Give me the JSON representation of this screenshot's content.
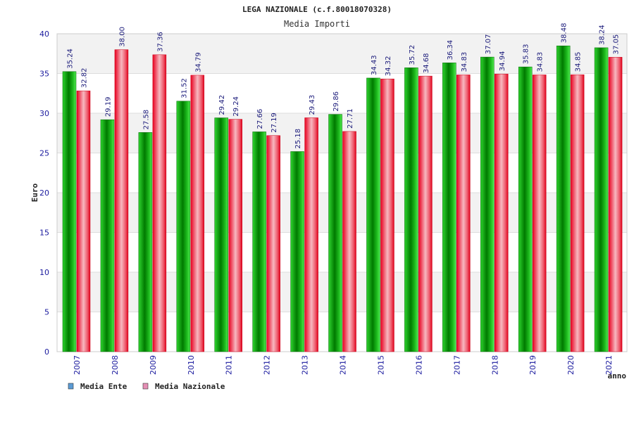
{
  "chart_data": {
    "type": "bar",
    "title": "LEGA NAZIONALE (c.f.80018070328)",
    "subtitle": "Media Importi",
    "xlabel": "anno",
    "ylabel": "Euro",
    "ylim": [
      0,
      40
    ],
    "yticks": [
      "0",
      "5",
      "10",
      "15",
      "20",
      "25",
      "30",
      "35",
      "40"
    ],
    "categories": [
      "2007",
      "2008",
      "2009",
      "2010",
      "2011",
      "2012",
      "2013",
      "2014",
      "2015",
      "2016",
      "2017",
      "2018",
      "2019",
      "2020",
      "2021"
    ],
    "series": [
      {
        "name": "Media Ente",
        "values": [
          35.24,
          29.19,
          27.58,
          31.52,
          29.42,
          27.66,
          25.18,
          29.86,
          34.43,
          35.72,
          36.34,
          37.07,
          35.83,
          38.48,
          38.24
        ],
        "labels": [
          "35.24",
          "29.19",
          "27.58",
          "31.52",
          "29.42",
          "27.66",
          "25.18",
          "29.86",
          "34.43",
          "35.72",
          "36.34",
          "37.07",
          "35.83",
          "38.48",
          "38.24"
        ]
      },
      {
        "name": "Media Nazionale",
        "values": [
          32.82,
          38.0,
          37.36,
          34.79,
          29.24,
          27.19,
          29.43,
          27.71,
          34.32,
          34.68,
          34.83,
          34.94,
          34.83,
          34.85,
          37.05
        ],
        "labels": [
          "32.82",
          "38.00",
          "37.36",
          "34.79",
          "29.24",
          "27.19",
          "29.43",
          "27.71",
          "34.32",
          "34.68",
          "34.83",
          "34.94",
          "34.83",
          "34.85",
          "37.05"
        ]
      }
    ],
    "legend": [
      {
        "name": "Media Ente",
        "swatch": "#5b9bd5"
      },
      {
        "name": "Media Nazionale",
        "swatch": "#e58fb5"
      }
    ],
    "colors": {
      "ente_dark": "#007a00",
      "ente_light": "#3ddc3d",
      "naz_dark": "#e0001a",
      "naz_light": "#f6b3bb",
      "band": "#f2f2f2"
    }
  }
}
